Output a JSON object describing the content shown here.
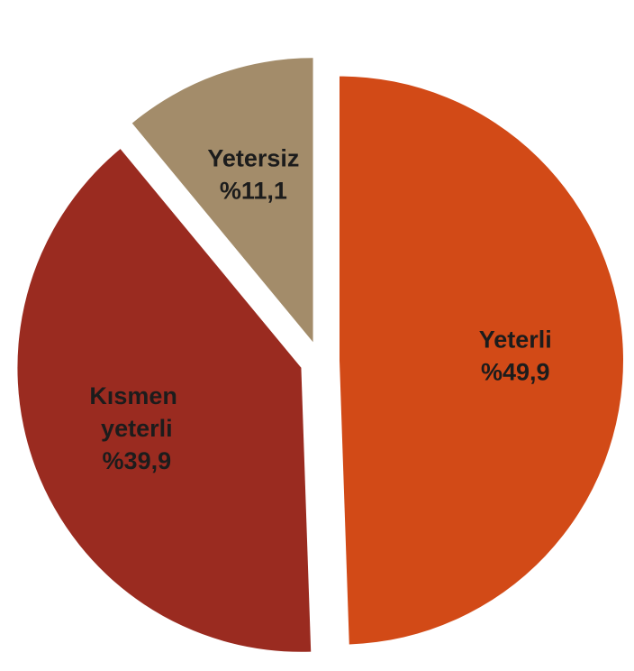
{
  "chart_data": {
    "type": "pie",
    "categories": [
      "Yeterli",
      "Kısmen yeterli",
      "Yetersiz"
    ],
    "values": [
      49.9,
      39.9,
      11.1
    ],
    "value_labels": [
      "%49,9",
      "%39,9",
      "%11,1"
    ],
    "colors": [
      "#d24a17",
      "#9a2b20",
      "#a38c6a"
    ]
  }
}
